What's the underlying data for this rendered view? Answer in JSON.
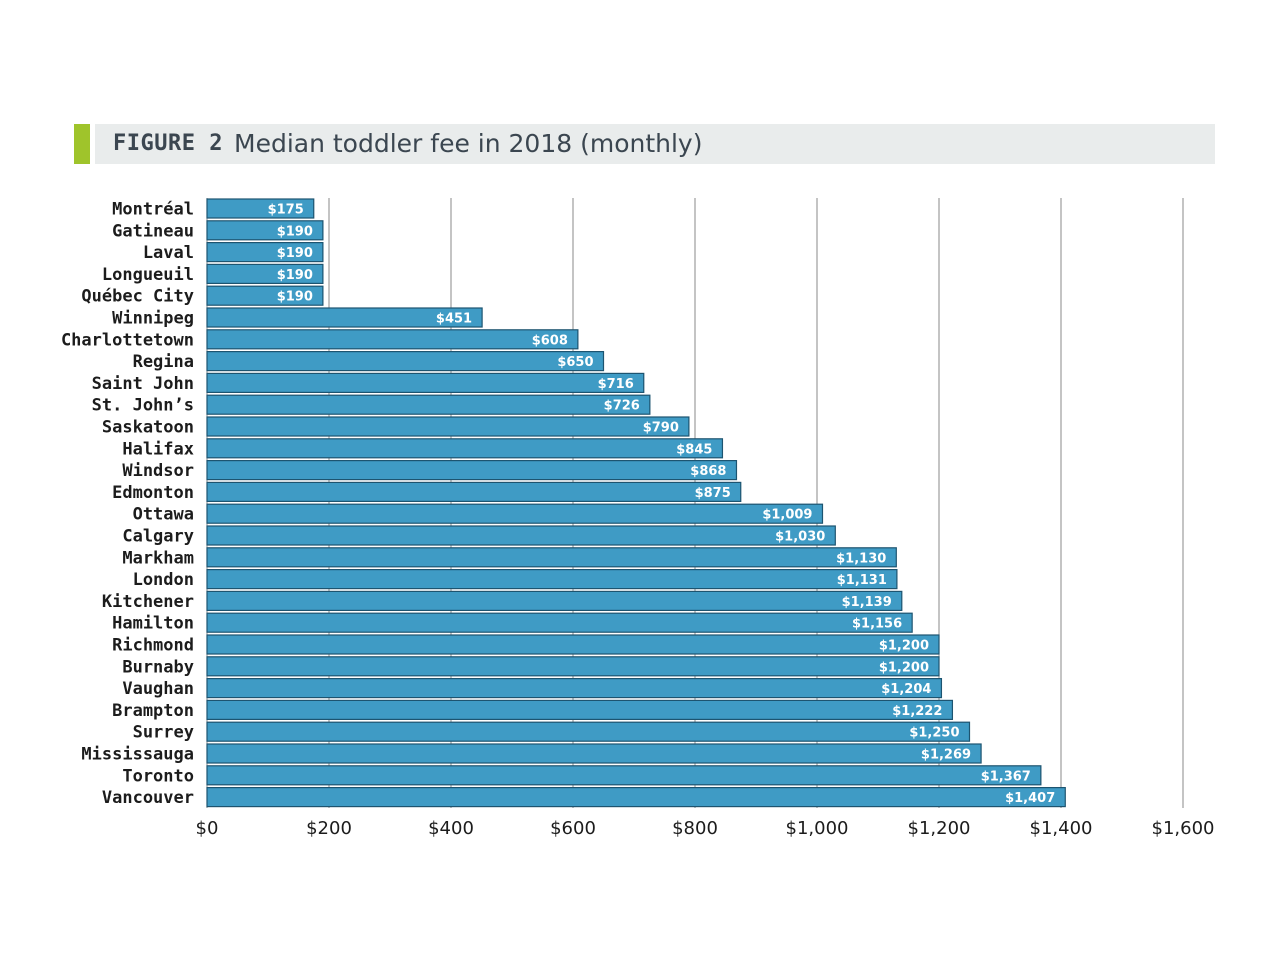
{
  "figure": {
    "label": "FIGURE 2",
    "title": "Median toddler fee in 2018 (monthly)"
  },
  "colors": {
    "bar": "#3f9bc5",
    "bar_border": "#1d5470",
    "grid": "#8a8a8a",
    "accent": "#9fc42b",
    "title_band": "#e9ecec"
  },
  "chart_data": {
    "type": "bar",
    "orientation": "horizontal",
    "title": "Median toddler fee in 2018 (monthly)",
    "xlabel": "",
    "ylabel": "",
    "xlim": [
      0,
      1600
    ],
    "grid": true,
    "x_ticks": [
      "$0",
      "$200",
      "$400",
      "$600",
      "$800",
      "$1,000",
      "$1,200",
      "$1,400",
      "$1,600"
    ],
    "x_tick_values": [
      0,
      200,
      400,
      600,
      800,
      1000,
      1200,
      1400,
      1600
    ],
    "categories": [
      "Montréal",
      "Gatineau",
      "Laval",
      "Longueuil",
      "Québec City",
      "Winnipeg",
      "Charlottetown",
      "Regina",
      "Saint John",
      "St. John’s",
      "Saskatoon",
      "Halifax",
      "Windsor",
      "Edmonton",
      "Ottawa",
      "Calgary",
      "Markham",
      "London",
      "Kitchener",
      "Hamilton",
      "Richmond",
      "Burnaby",
      "Vaughan",
      "Brampton",
      "Surrey",
      "Mississauga",
      "Toronto",
      "Vancouver"
    ],
    "values": [
      175,
      190,
      190,
      190,
      190,
      451,
      608,
      650,
      716,
      726,
      790,
      845,
      868,
      875,
      1009,
      1030,
      1130,
      1131,
      1139,
      1156,
      1200,
      1200,
      1204,
      1222,
      1250,
      1269,
      1367,
      1407
    ],
    "value_labels": [
      "$175",
      "$190",
      "$190",
      "$190",
      "$190",
      "$451",
      "$608",
      "$650",
      "$716",
      "$726",
      "$790",
      "$845",
      "$868",
      "$875",
      "$1,009",
      "$1,030",
      "$1,130",
      "$1,131",
      "$1,139",
      "$1,156",
      "$1,200",
      "$1,200",
      "$1,204",
      "$1,222",
      "$1,250",
      "$1,269",
      "$1,367",
      "$1,407"
    ]
  }
}
